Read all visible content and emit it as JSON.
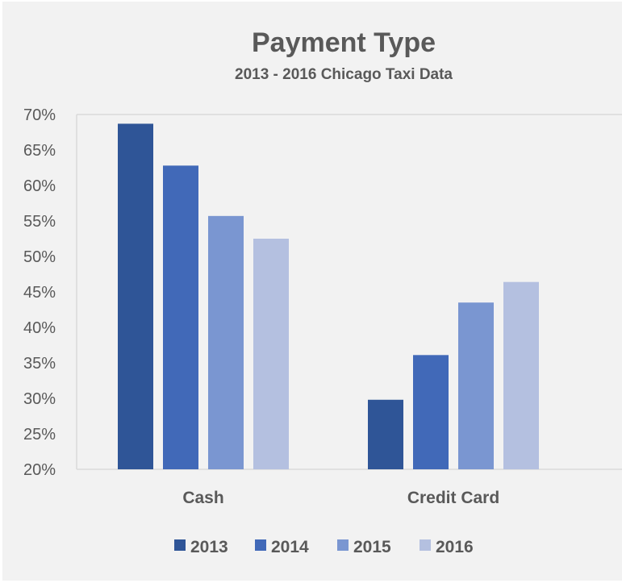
{
  "chart_data": {
    "type": "bar",
    "title": "Payment Type",
    "subtitle": "2013 - 2016 Chicago Taxi Data",
    "categories": [
      "Cash",
      "Credit Card"
    ],
    "series": [
      {
        "name": "2013",
        "values": [
          68.7,
          29.8
        ],
        "color": "#2f5597"
      },
      {
        "name": "2014",
        "values": [
          62.8,
          36.1
        ],
        "color": "#4169b8"
      },
      {
        "name": "2015",
        "values": [
          55.7,
          43.5
        ],
        "color": "#7a96d1"
      },
      {
        "name": "2016",
        "values": [
          52.5,
          46.4
        ],
        "color": "#b4c0e0"
      }
    ],
    "ylim": [
      20,
      70
    ],
    "yticks": [
      20,
      25,
      30,
      35,
      40,
      45,
      50,
      55,
      60,
      65,
      70
    ],
    "ytick_labels": [
      "20%",
      "25%",
      "30%",
      "35%",
      "40%",
      "45%",
      "50%",
      "55%",
      "60%",
      "65%",
      "70%"
    ],
    "grid": false,
    "legend_position": "bottom",
    "axis_color": "#d9d9d9",
    "background": "#f2f2f2"
  }
}
